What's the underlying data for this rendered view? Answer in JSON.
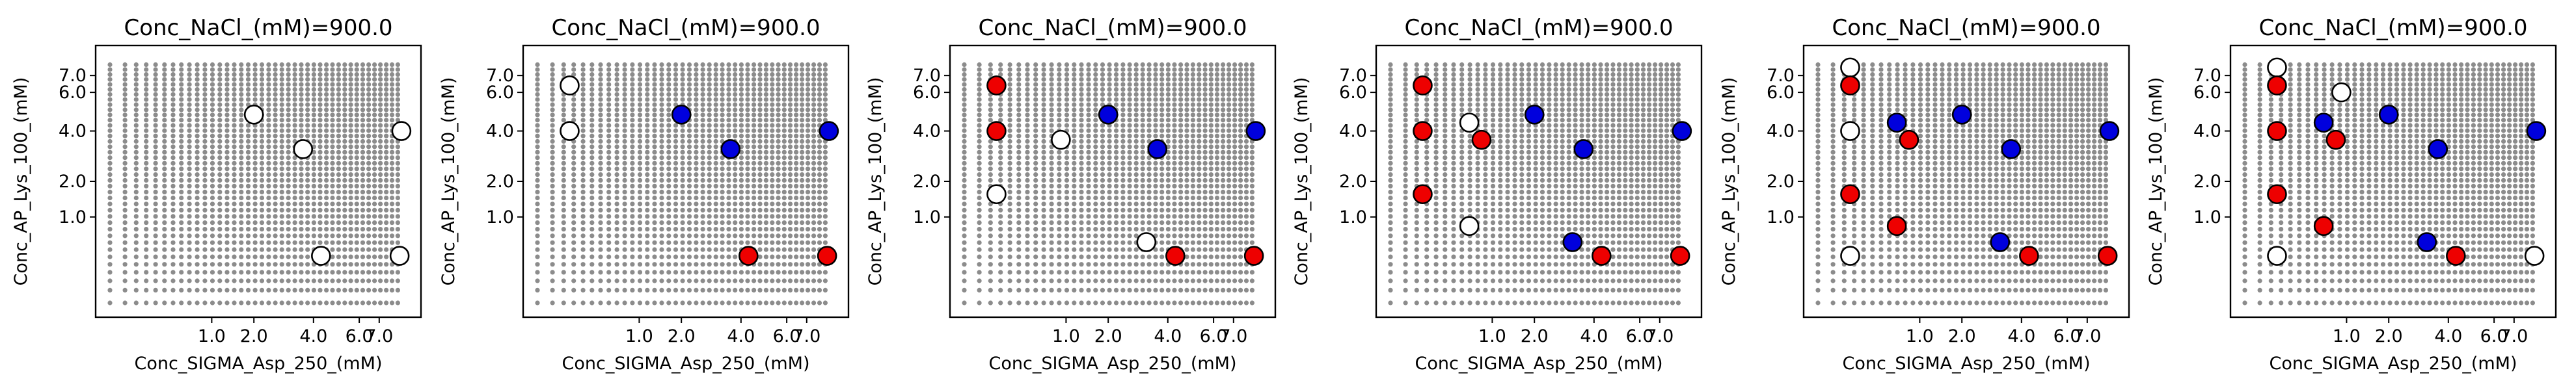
{
  "colors": {
    "grid_points": "#8c8c8c",
    "blue": "#0000dd",
    "red": "#ee0000",
    "white": "#ffffff",
    "edge": "#000000"
  },
  "chart_data": [
    {
      "type": "scatter",
      "title": "Conc_NaCl_(mM)=900.0",
      "xlabel": "Conc_SIGMA_Asp_250_(mM)",
      "ylabel": "Conc_AP_Lys_100_(mM)",
      "x_ticks": [
        "1.0",
        "2.0",
        "4.0",
        "6.0",
        "7.0"
      ],
      "y_ticks": [
        "1.0",
        "2.0",
        "4.0",
        "6.0",
        "7.0"
      ],
      "points": [
        {
          "x": 2.0,
          "y": 4.8,
          "color": "white"
        },
        {
          "x": 3.6,
          "y": 3.2,
          "color": "white"
        },
        {
          "x": 8.2,
          "y": 4.0,
          "color": "white"
        },
        {
          "x": 4.3,
          "y": 0.3,
          "color": "white"
        },
        {
          "x": 8.1,
          "y": 0.3,
          "color": "white"
        }
      ]
    },
    {
      "type": "scatter",
      "title": "Conc_NaCl_(mM)=900.0",
      "xlabel": "Conc_SIGMA_Asp_250_(mM)",
      "ylabel": "Conc_AP_Lys_100_(mM)",
      "x_ticks": [
        "1.0",
        "2.0",
        "4.0",
        "6.0",
        "7.0"
      ],
      "y_ticks": [
        "1.0",
        "2.0",
        "4.0",
        "6.0",
        "7.0"
      ],
      "points": [
        {
          "x": 0.1,
          "y": 6.4,
          "color": "white"
        },
        {
          "x": 0.1,
          "y": 4.0,
          "color": "white"
        },
        {
          "x": 2.0,
          "y": 4.8,
          "color": "blue"
        },
        {
          "x": 3.6,
          "y": 3.2,
          "color": "blue"
        },
        {
          "x": 8.2,
          "y": 4.0,
          "color": "blue"
        },
        {
          "x": 4.3,
          "y": 0.3,
          "color": "red"
        },
        {
          "x": 8.1,
          "y": 0.3,
          "color": "red"
        }
      ]
    },
    {
      "type": "scatter",
      "title": "Conc_NaCl_(mM)=900.0",
      "xlabel": "Conc_SIGMA_Asp_250_(mM)",
      "ylabel": "Conc_AP_Lys_100_(mM)",
      "x_ticks": [
        "1.0",
        "2.0",
        "4.0",
        "6.0",
        "7.0"
      ],
      "y_ticks": [
        "1.0",
        "2.0",
        "4.0",
        "6.0",
        "7.0"
      ],
      "points": [
        {
          "x": 0.1,
          "y": 6.4,
          "color": "red"
        },
        {
          "x": 0.1,
          "y": 4.0,
          "color": "red"
        },
        {
          "x": 0.9,
          "y": 3.6,
          "color": "white"
        },
        {
          "x": 0.1,
          "y": 1.6,
          "color": "white"
        },
        {
          "x": 3.2,
          "y": 0.5,
          "color": "white"
        },
        {
          "x": 2.0,
          "y": 4.8,
          "color": "blue"
        },
        {
          "x": 3.6,
          "y": 3.2,
          "color": "blue"
        },
        {
          "x": 8.2,
          "y": 4.0,
          "color": "blue"
        },
        {
          "x": 4.3,
          "y": 0.3,
          "color": "red"
        },
        {
          "x": 8.1,
          "y": 0.3,
          "color": "red"
        }
      ]
    },
    {
      "type": "scatter",
      "title": "Conc_NaCl_(mM)=900.0",
      "xlabel": "Conc_SIGMA_Asp_250_(mM)",
      "ylabel": "Conc_AP_Lys_100_(mM)",
      "x_ticks": [
        "1.0",
        "2.0",
        "4.0",
        "6.0",
        "7.0"
      ],
      "y_ticks": [
        "1.0",
        "2.0",
        "4.0",
        "6.0",
        "7.0"
      ],
      "points": [
        {
          "x": 0.1,
          "y": 6.4,
          "color": "red"
        },
        {
          "x": 0.1,
          "y": 4.0,
          "color": "red"
        },
        {
          "x": 0.6,
          "y": 4.4,
          "color": "white"
        },
        {
          "x": 0.8,
          "y": 3.6,
          "color": "red"
        },
        {
          "x": 0.1,
          "y": 1.6,
          "color": "red"
        },
        {
          "x": 0.6,
          "y": 0.8,
          "color": "white"
        },
        {
          "x": 2.0,
          "y": 4.8,
          "color": "blue"
        },
        {
          "x": 3.6,
          "y": 3.2,
          "color": "blue"
        },
        {
          "x": 3.2,
          "y": 0.5,
          "color": "blue"
        },
        {
          "x": 8.2,
          "y": 4.0,
          "color": "blue"
        },
        {
          "x": 4.3,
          "y": 0.3,
          "color": "red"
        },
        {
          "x": 8.1,
          "y": 0.3,
          "color": "red"
        }
      ]
    },
    {
      "type": "scatter",
      "title": "Conc_NaCl_(mM)=900.0",
      "xlabel": "Conc_SIGMA_Asp_250_(mM)",
      "ylabel": "Conc_AP_Lys_100_(mM)",
      "x_ticks": [
        "1.0",
        "2.0",
        "4.0",
        "6.0",
        "7.0"
      ],
      "y_ticks": [
        "1.0",
        "2.0",
        "4.0",
        "6.0",
        "7.0"
      ],
      "points": [
        {
          "x": 0.1,
          "y": 7.5,
          "color": "white"
        },
        {
          "x": 0.1,
          "y": 6.4,
          "color": "red"
        },
        {
          "x": 0.1,
          "y": 4.0,
          "color": "white"
        },
        {
          "x": 0.6,
          "y": 4.4,
          "color": "blue"
        },
        {
          "x": 0.8,
          "y": 3.6,
          "color": "red"
        },
        {
          "x": 0.1,
          "y": 1.6,
          "color": "red"
        },
        {
          "x": 0.6,
          "y": 0.8,
          "color": "red"
        },
        {
          "x": 0.1,
          "y": 0.3,
          "color": "white"
        },
        {
          "x": 2.0,
          "y": 4.8,
          "color": "blue"
        },
        {
          "x": 3.6,
          "y": 3.2,
          "color": "blue"
        },
        {
          "x": 3.2,
          "y": 0.5,
          "color": "blue"
        },
        {
          "x": 8.2,
          "y": 4.0,
          "color": "blue"
        },
        {
          "x": 4.3,
          "y": 0.3,
          "color": "red"
        },
        {
          "x": 8.1,
          "y": 0.3,
          "color": "red"
        }
      ]
    },
    {
      "type": "scatter",
      "title": "Conc_NaCl_(mM)=900.0",
      "xlabel": "Conc_SIGMA_Asp_250_(mM)",
      "ylabel": "Conc_AP_Lys_100_(mM)",
      "x_ticks": [
        "1.0",
        "2.0",
        "4.0",
        "6.0",
        "7.0"
      ],
      "y_ticks": [
        "1.0",
        "2.0",
        "4.0",
        "6.0",
        "7.0"
      ],
      "points": [
        {
          "x": 0.1,
          "y": 7.5,
          "color": "white"
        },
        {
          "x": 0.9,
          "y": 6.0,
          "color": "white"
        },
        {
          "x": 0.1,
          "y": 6.4,
          "color": "red"
        },
        {
          "x": 0.1,
          "y": 4.0,
          "color": "red"
        },
        {
          "x": 0.6,
          "y": 4.4,
          "color": "blue"
        },
        {
          "x": 0.8,
          "y": 3.6,
          "color": "red"
        },
        {
          "x": 0.1,
          "y": 1.6,
          "color": "red"
        },
        {
          "x": 0.6,
          "y": 0.8,
          "color": "red"
        },
        {
          "x": 0.1,
          "y": 0.3,
          "color": "white"
        },
        {
          "x": 2.0,
          "y": 4.8,
          "color": "blue"
        },
        {
          "x": 3.6,
          "y": 3.2,
          "color": "blue"
        },
        {
          "x": 3.2,
          "y": 0.5,
          "color": "blue"
        },
        {
          "x": 8.2,
          "y": 4.0,
          "color": "blue"
        },
        {
          "x": 4.3,
          "y": 0.3,
          "color": "red"
        },
        {
          "x": 8.1,
          "y": 0.3,
          "color": "white"
        }
      ]
    }
  ]
}
